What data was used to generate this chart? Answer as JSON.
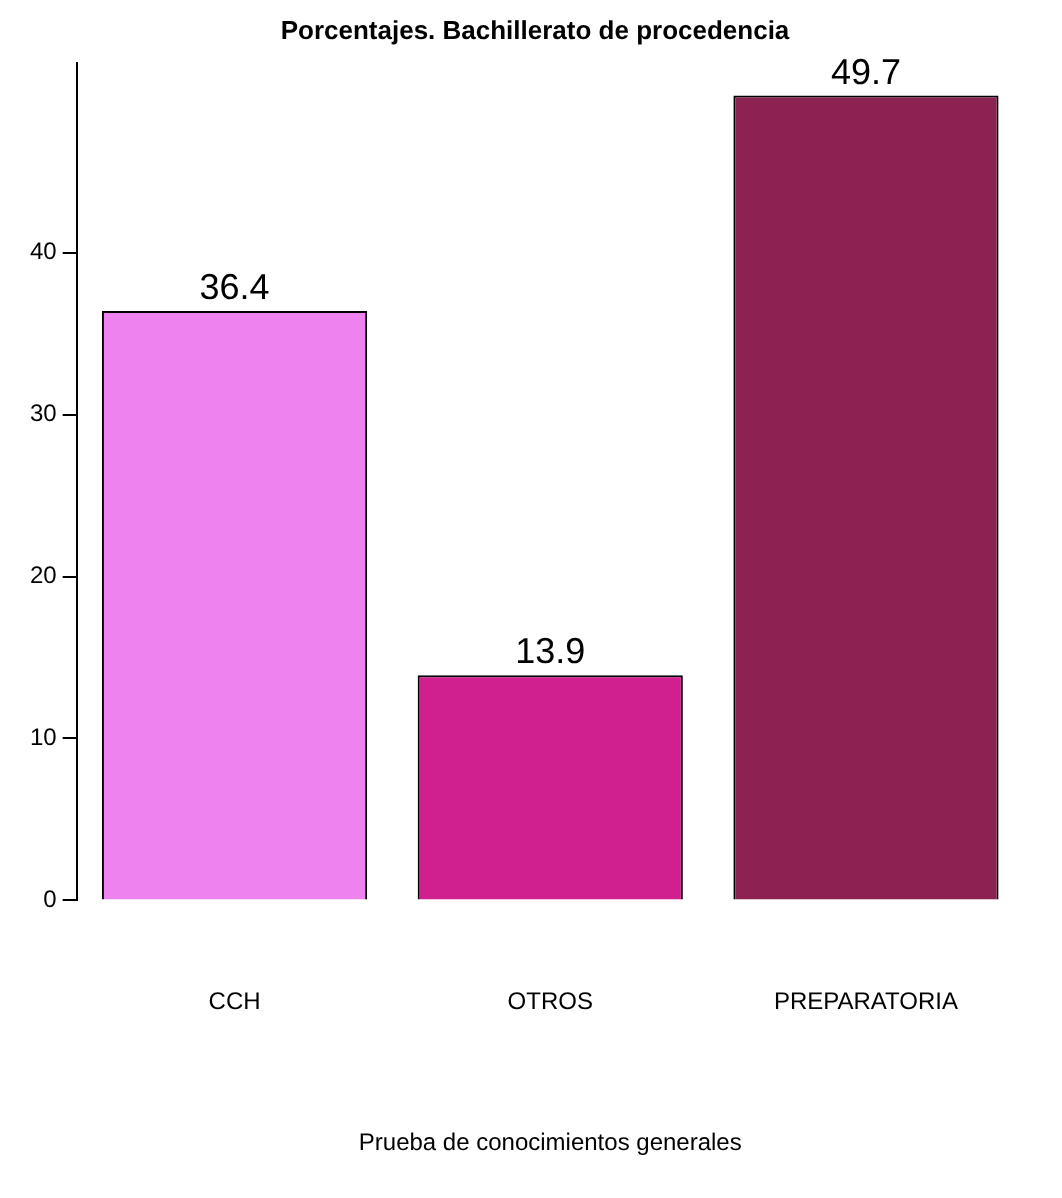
{
  "chart_data": {
    "type": "bar",
    "title": "Porcentajes. Bachillerato de procedencia",
    "xlabel": "Prueba de conocimientos generales",
    "categories": [
      "CCH",
      "OTROS",
      "PREPARATORIA"
    ],
    "values": [
      36.4,
      13.9,
      49.7
    ],
    "colors": [
      "#ee82ee",
      "#d02090",
      "#8b2252"
    ],
    "ylim": [
      0,
      51.7
    ],
    "yticks": [
      0,
      10,
      20,
      30,
      40
    ],
    "grid": false,
    "legend": false,
    "data_labels": true
  }
}
